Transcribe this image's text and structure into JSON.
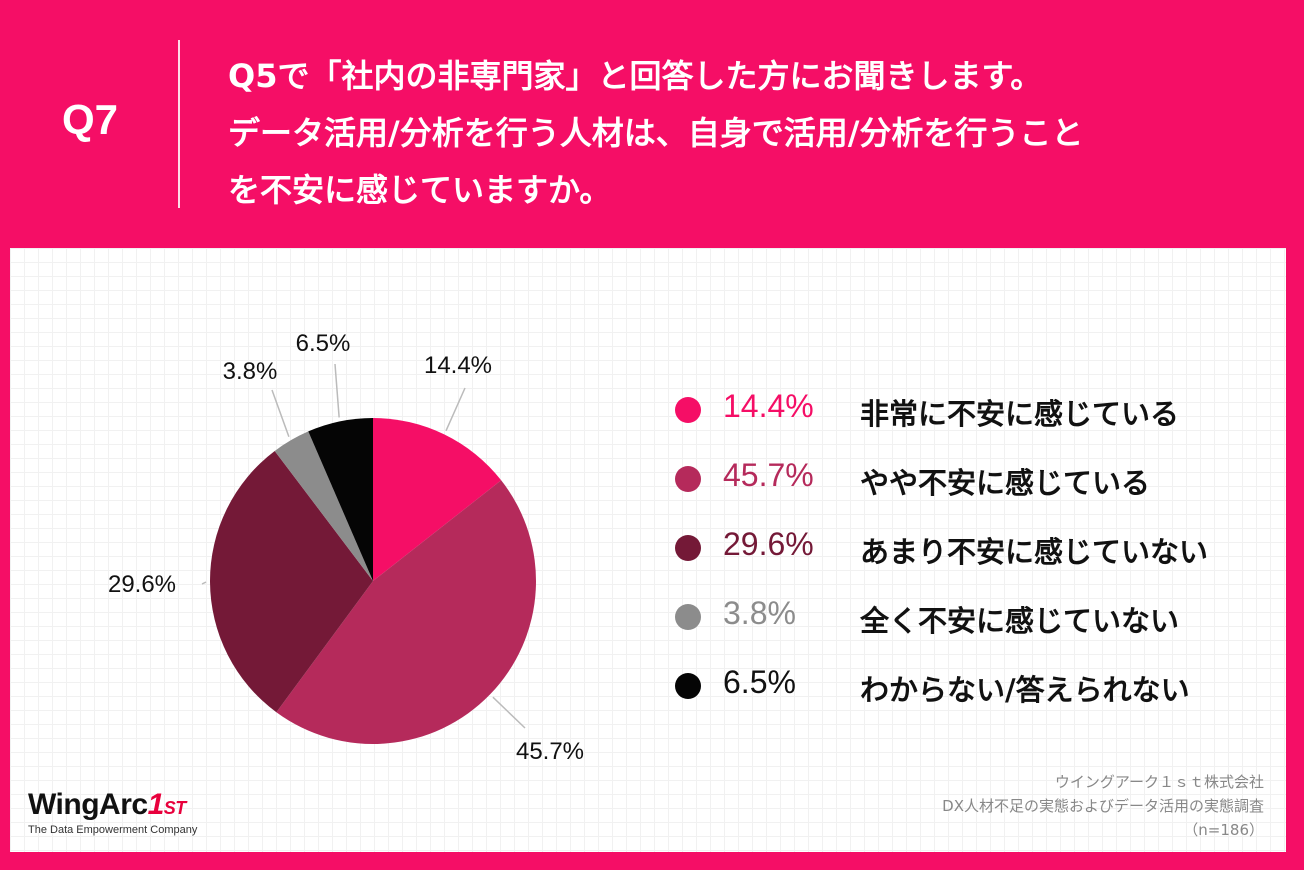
{
  "header": {
    "question_number": "Q7",
    "question_lines": [
      "Q5で「社内の非専門家」と回答した方にお聞きします。",
      "データ活用/分析を行う人材は、自身で活用/分析を行うこと",
      "を不安に感じていますか。"
    ]
  },
  "colors": {
    "very_anxious": "#f50e66",
    "somewhat_anxious": "#b52a5b",
    "not_very_anxious": "#741937",
    "not_anxious_at_all": "#8c8c8c",
    "unknown": "#050505"
  },
  "chart_data": {
    "type": "pie",
    "title": "データ活用/分析を行う人材は、自身で活用/分析を行うことを不安に感じていますか。",
    "unit": "%",
    "slices": [
      {
        "label": "非常に不安に感じている",
        "value": 14.4,
        "display": "14.4%",
        "color": "#f50e66"
      },
      {
        "label": "やや不安に感じている",
        "value": 45.7,
        "display": "45.7%",
        "color": "#b52a5b"
      },
      {
        "label": "あまり不安に感じていない",
        "value": 29.6,
        "display": "29.6%",
        "color": "#741937"
      },
      {
        "label": "全く不安に感じていない",
        "value": 3.8,
        "display": "3.8%",
        "color": "#8c8c8c"
      },
      {
        "label": "わからない/答えられない",
        "value": 6.5,
        "display": "6.5%",
        "color": "#050505"
      }
    ],
    "start_angle": "12 o'clock, clockwise",
    "legend_position": "right",
    "data_labels": "outside with leader lines"
  },
  "source": {
    "company": "ウイングアーク１ｓｔ株式会社",
    "survey": "DX人材不足の実態およびデータ活用の実態調査",
    "sample": "（n=186）"
  },
  "logo": {
    "name_main": "WingArc",
    "name_one": "1",
    "name_st": "ST",
    "tagline": "The Data Empowerment Company"
  }
}
